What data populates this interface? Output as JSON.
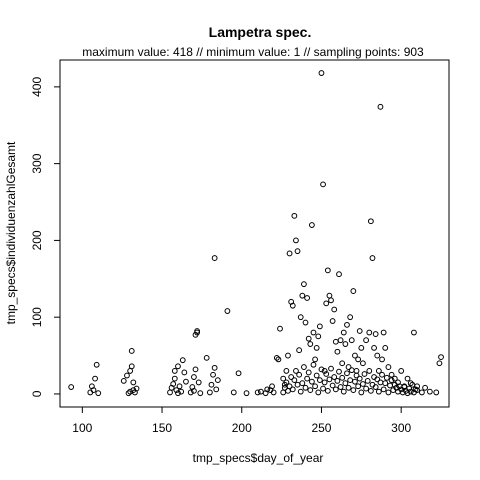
{
  "chart_data": {
    "type": "scatter",
    "title": "Lampetra spec.",
    "subtitle": "maximum value: 418  //  minimum value: 1  // sampling points: 903",
    "xlabel": "tmp_specs$day_of_year",
    "ylabel": "tmp_specs$individuenzahlGesamt",
    "xlim": [
      86,
      330
    ],
    "ylim": [
      -17,
      435
    ],
    "xticks": [
      100,
      150,
      200,
      250,
      300
    ],
    "yticks": [
      0,
      100,
      200,
      300,
      400
    ],
    "grid": false,
    "marker": "open-circle",
    "summary": {
      "maximum": 418,
      "minimum": 1,
      "sampling_points": 903
    },
    "points": [
      [
        93,
        9
      ],
      [
        105,
        2
      ],
      [
        106,
        10
      ],
      [
        107,
        5
      ],
      [
        108,
        20
      ],
      [
        109,
        38
      ],
      [
        110,
        1
      ],
      [
        126,
        17
      ],
      [
        128,
        24
      ],
      [
        129,
        1
      ],
      [
        130,
        3
      ],
      [
        130,
        30
      ],
      [
        131,
        36
      ],
      [
        131,
        56
      ],
      [
        132,
        5
      ],
      [
        132,
        15
      ],
      [
        133,
        2
      ],
      [
        134,
        7
      ],
      [
        155,
        2
      ],
      [
        156,
        8
      ],
      [
        157,
        13
      ],
      [
        158,
        20
      ],
      [
        158,
        30
      ],
      [
        159,
        5
      ],
      [
        160,
        1
      ],
      [
        160,
        36
      ],
      [
        161,
        10
      ],
      [
        162,
        3
      ],
      [
        163,
        44
      ],
      [
        164,
        28
      ],
      [
        165,
        16
      ],
      [
        168,
        2
      ],
      [
        169,
        9
      ],
      [
        170,
        4
      ],
      [
        170,
        22
      ],
      [
        171,
        32
      ],
      [
        171,
        77
      ],
      [
        172,
        82
      ],
      [
        172,
        80
      ],
      [
        173,
        15
      ],
      [
        174,
        1
      ],
      [
        178,
        47
      ],
      [
        180,
        2
      ],
      [
        181,
        12
      ],
      [
        182,
        25
      ],
      [
        183,
        177
      ],
      [
        183,
        34
      ],
      [
        184,
        6
      ],
      [
        185,
        18
      ],
      [
        191,
        108
      ],
      [
        195,
        2
      ],
      [
        198,
        27
      ],
      [
        203,
        1
      ],
      [
        210,
        2
      ],
      [
        212,
        3
      ],
      [
        215,
        1
      ],
      [
        216,
        6
      ],
      [
        218,
        5
      ],
      [
        219,
        10
      ],
      [
        220,
        2
      ],
      [
        222,
        47
      ],
      [
        223,
        45
      ],
      [
        224,
        85
      ],
      [
        226,
        20
      ],
      [
        227,
        12
      ],
      [
        228,
        30
      ],
      [
        229,
        50
      ],
      [
        230,
        183
      ],
      [
        231,
        120
      ],
      [
        232,
        115
      ],
      [
        233,
        232
      ],
      [
        234,
        200
      ],
      [
        235,
        186
      ],
      [
        236,
        57
      ],
      [
        237,
        100
      ],
      [
        238,
        128
      ],
      [
        239,
        143
      ],
      [
        240,
        93
      ],
      [
        241,
        125
      ],
      [
        242,
        72
      ],
      [
        243,
        65
      ],
      [
        244,
        220
      ],
      [
        245,
        80
      ],
      [
        246,
        45
      ],
      [
        247,
        60
      ],
      [
        248,
        75
      ],
      [
        249,
        88
      ],
      [
        250,
        418
      ],
      [
        251,
        273
      ],
      [
        252,
        30
      ],
      [
        253,
        118
      ],
      [
        254,
        161
      ],
      [
        255,
        128
      ],
      [
        256,
        122
      ],
      [
        257,
        95
      ],
      [
        258,
        110
      ],
      [
        259,
        68
      ],
      [
        260,
        55
      ],
      [
        261,
        156
      ],
      [
        262,
        70
      ],
      [
        263,
        40
      ],
      [
        264,
        80
      ],
      [
        265,
        65
      ],
      [
        266,
        90
      ],
      [
        267,
        35
      ],
      [
        268,
        100
      ],
      [
        269,
        70
      ],
      [
        270,
        134
      ],
      [
        271,
        50
      ],
      [
        272,
        30
      ],
      [
        273,
        45
      ],
      [
        274,
        82
      ],
      [
        275,
        60
      ],
      [
        276,
        40
      ],
      [
        278,
        70
      ],
      [
        280,
        80
      ],
      [
        281,
        225
      ],
      [
        282,
        177
      ],
      [
        283,
        60
      ],
      [
        284,
        78
      ],
      [
        285,
        50
      ],
      [
        286,
        30
      ],
      [
        287,
        374
      ],
      [
        288,
        45
      ],
      [
        289,
        80
      ],
      [
        290,
        60
      ],
      [
        292,
        35
      ],
      [
        294,
        25
      ],
      [
        296,
        20
      ],
      [
        298,
        15
      ],
      [
        300,
        30
      ],
      [
        302,
        10
      ],
      [
        304,
        20
      ],
      [
        306,
        14
      ],
      [
        308,
        80
      ],
      [
        310,
        5
      ],
      [
        313,
        2
      ],
      [
        315,
        8
      ],
      [
        318,
        3
      ],
      [
        322,
        2
      ],
      [
        324,
        40
      ],
      [
        325,
        48
      ],
      [
        226,
        2
      ],
      [
        227,
        8
      ],
      [
        228,
        15
      ],
      [
        229,
        4
      ],
      [
        230,
        10
      ],
      [
        231,
        22
      ],
      [
        232,
        6
      ],
      [
        233,
        18
      ],
      [
        234,
        30
      ],
      [
        235,
        12
      ],
      [
        236,
        25
      ],
      [
        237,
        3
      ],
      [
        238,
        14
      ],
      [
        239,
        35
      ],
      [
        240,
        8
      ],
      [
        241,
        20
      ],
      [
        242,
        28
      ],
      [
        243,
        5
      ],
      [
        244,
        16
      ],
      [
        245,
        38
      ],
      [
        246,
        10
      ],
      [
        247,
        24
      ],
      [
        248,
        2
      ],
      [
        249,
        18
      ],
      [
        250,
        32
      ],
      [
        251,
        7
      ],
      [
        252,
        15
      ],
      [
        253,
        26
      ],
      [
        254,
        4
      ],
      [
        255,
        19
      ],
      [
        256,
        33
      ],
      [
        257,
        11
      ],
      [
        258,
        22
      ],
      [
        259,
        6
      ],
      [
        260,
        17
      ],
      [
        261,
        29
      ],
      [
        262,
        9
      ],
      [
        263,
        21
      ],
      [
        264,
        3
      ],
      [
        265,
        14
      ],
      [
        266,
        27
      ],
      [
        267,
        8
      ],
      [
        268,
        18
      ],
      [
        269,
        31
      ],
      [
        270,
        5
      ],
      [
        271,
        16
      ],
      [
        272,
        24
      ],
      [
        273,
        10
      ],
      [
        274,
        20
      ],
      [
        275,
        2
      ],
      [
        276,
        13
      ],
      [
        277,
        26
      ],
      [
        278,
        7
      ],
      [
        279,
        17
      ],
      [
        280,
        30
      ],
      [
        281,
        4
      ],
      [
        282,
        12
      ],
      [
        283,
        22
      ],
      [
        284,
        9
      ],
      [
        285,
        19
      ],
      [
        286,
        3
      ],
      [
        287,
        15
      ],
      [
        288,
        25
      ],
      [
        289,
        6
      ],
      [
        290,
        14
      ],
      [
        291,
        21
      ],
      [
        292,
        2
      ],
      [
        293,
        11
      ],
      [
        294,
        18
      ],
      [
        295,
        5
      ],
      [
        296,
        12
      ],
      [
        297,
        8
      ],
      [
        298,
        3
      ],
      [
        299,
        10
      ],
      [
        300,
        6
      ],
      [
        301,
        2
      ],
      [
        302,
        9
      ],
      [
        303,
        4
      ],
      [
        304,
        1
      ],
      [
        305,
        7
      ],
      [
        306,
        3
      ],
      [
        307,
        12
      ],
      [
        308,
        2
      ],
      [
        309,
        6
      ],
      [
        310,
        10
      ]
    ]
  }
}
